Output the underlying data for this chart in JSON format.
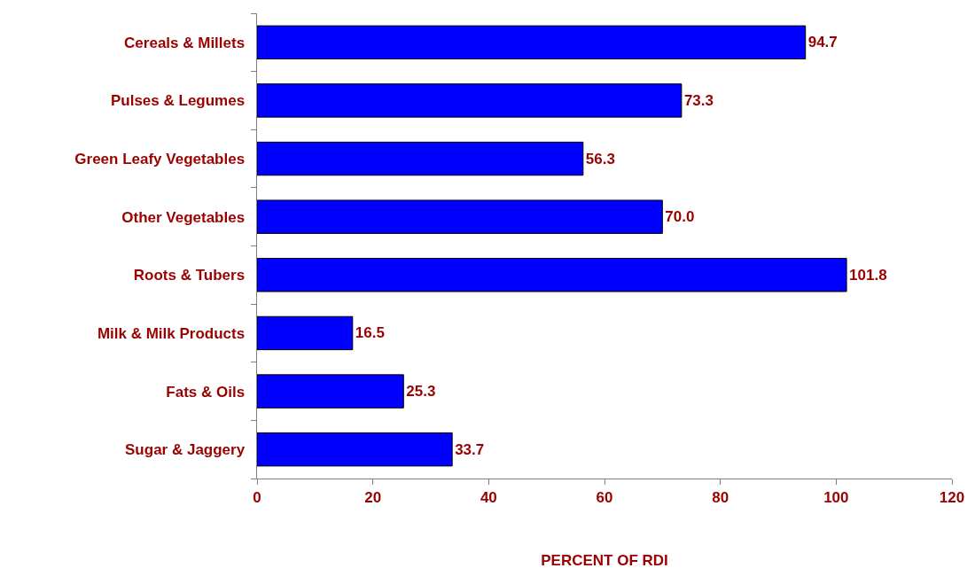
{
  "chart_data": {
    "type": "bar",
    "orientation": "horizontal",
    "xlabel": "PERCENT OF RDI",
    "categories": [
      "Cereals & Millets",
      "Pulses & Legumes",
      "Green Leafy Vegetables",
      "Other Vegetables",
      "Roots & Tubers",
      "Milk & Milk Products",
      "Fats & Oils",
      "Sugar & Jaggery"
    ],
    "values": [
      94.7,
      73.3,
      56.3,
      70.0,
      101.8,
      16.5,
      25.3,
      33.7
    ],
    "value_labels": [
      "94.7",
      "73.3",
      "56.3",
      "70.0",
      "101.8",
      "16.5",
      "25.3",
      "33.7"
    ],
    "color": "#0000ff",
    "xlim": [
      0,
      120
    ],
    "xticks": [
      0,
      20,
      40,
      60,
      80,
      100,
      120
    ]
  }
}
